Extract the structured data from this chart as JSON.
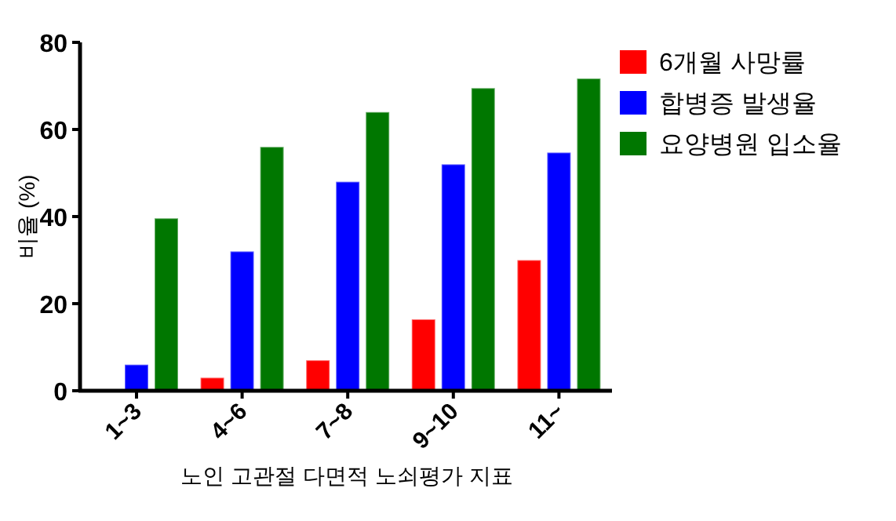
{
  "chart_data": {
    "type": "bar",
    "xlabel": "노인 고관절 다면적 노쇠평가 지표",
    "ylabel": "비율 (%)",
    "categories": [
      "1~3",
      "4~6",
      "7~8",
      "9~10",
      "11~"
    ],
    "series": [
      {
        "name": "6개월 사망률",
        "color": "#ff0000",
        "values": [
          null,
          3,
          7,
          16.4,
          30
        ]
      },
      {
        "name": "합병증 발생율",
        "color": "#0000ff",
        "values": [
          6,
          32,
          48,
          52,
          54.7
        ]
      },
      {
        "name": "요양병원 입소율",
        "color": "#007700",
        "values": [
          39.6,
          56,
          64,
          69.5,
          71.7
        ]
      }
    ],
    "ylim": [
      0,
      80
    ],
    "yticks": [
      0,
      20,
      40,
      60,
      80
    ],
    "grid": false,
    "legend": "top right"
  }
}
